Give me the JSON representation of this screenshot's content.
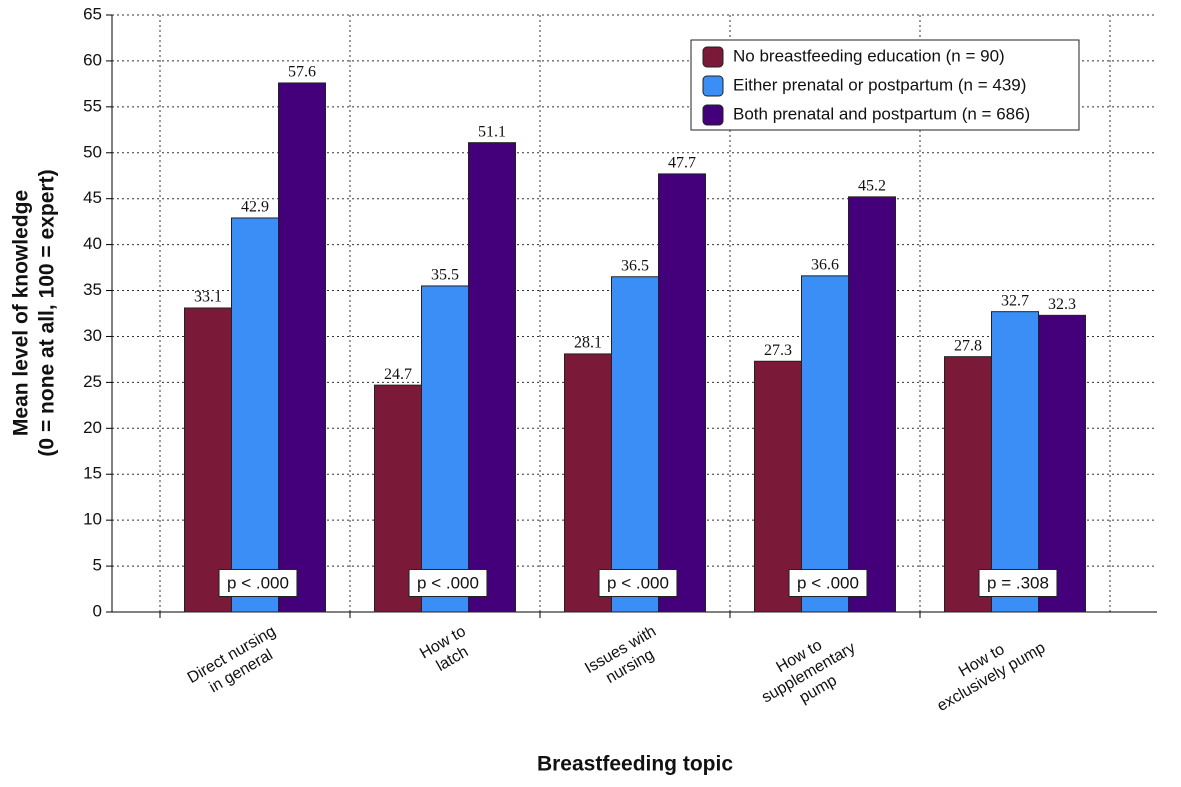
{
  "chart_data": {
    "type": "bar",
    "x_label": "Breastfeeding topic",
    "y_label": [
      "Mean level of knowledge",
      "(0 = none at all, 100 = expert)"
    ],
    "categories": [
      "Direct nursing\nin general",
      "How to\nlatch",
      "Issues with\nnursing",
      "How to\nsupplementary\npump",
      "How to\nexclusively pump"
    ],
    "series": [
      {
        "name": "No breastfeeding education (n = 90)",
        "color": "#7b1a38",
        "values": [
          33.1,
          24.7,
          28.1,
          27.3,
          27.8
        ]
      },
      {
        "name": "Either prenatal or postpartum (n = 439)",
        "color": "#3a8ef6",
        "values": [
          42.9,
          35.5,
          36.5,
          36.6,
          32.7
        ]
      },
      {
        "name": "Both prenatal and postpartum (n = 686)",
        "color": "#44007a",
        "values": [
          57.6,
          51.1,
          47.7,
          45.2,
          32.3
        ]
      }
    ],
    "annotations": [
      "p < .000",
      "p < .000",
      "p < .000",
      "p < .000",
      "p = .308"
    ],
    "ylim": [
      0,
      65
    ],
    "yticks": [
      0,
      5,
      10,
      15,
      20,
      25,
      30,
      35,
      40,
      45,
      50,
      55,
      60,
      65
    ],
    "grid": true,
    "legend": "upper right"
  }
}
